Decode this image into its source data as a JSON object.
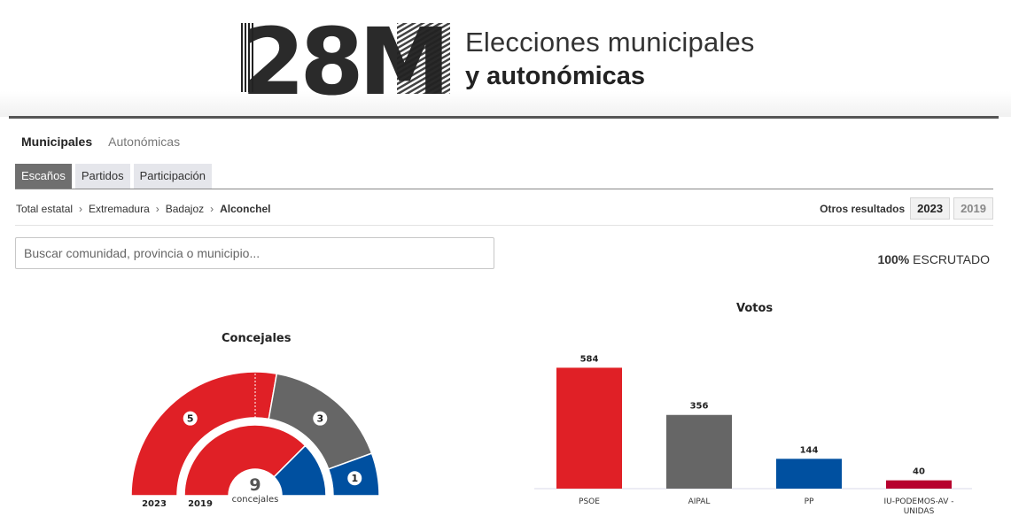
{
  "header": {
    "logo_text": "28M",
    "title_line1": "Elecciones municipales",
    "title_line2": "y autonómicas"
  },
  "election_types": [
    {
      "label": "Municipales",
      "active": true
    },
    {
      "label": "Autonómicas",
      "active": false
    }
  ],
  "tabs": [
    {
      "label": "Escaños",
      "active": true
    },
    {
      "label": "Partidos",
      "active": false
    },
    {
      "label": "Participación",
      "active": false
    }
  ],
  "breadcrumb": [
    "Total estatal",
    "Extremadura",
    "Badajoz",
    "Alconchel"
  ],
  "other_results": {
    "label": "Otros resultados",
    "years": [
      {
        "label": "2023",
        "active": true
      },
      {
        "label": "2019",
        "active": false
      }
    ]
  },
  "search": {
    "placeholder": "Buscar comunidad, provincia o municipio..."
  },
  "counted": {
    "percent": "100%",
    "label": "ESCRUTADO"
  },
  "icons": [
    "chevron-right-icon"
  ],
  "colors": {
    "PSOE": "#e02026",
    "AIPAL": "#666666",
    "PP": "#0050a0",
    "IU-PODEMOS-AV-UNIDAS": "#b7002e"
  },
  "chart_data": [
    {
      "type": "pie",
      "title": "Concejales",
      "center_value": "9",
      "center_label": "concejales",
      "ring_labels": [
        "2023",
        "2019"
      ],
      "series": [
        {
          "name": "2023",
          "slices": [
            {
              "party": "PSOE",
              "value": 5,
              "color": "#e02026"
            },
            {
              "party": "AIPAL",
              "value": 3,
              "color": "#666666"
            },
            {
              "party": "PP",
              "value": 1,
              "color": "#0050a0"
            }
          ]
        },
        {
          "name": "2019",
          "slices": [
            {
              "party": "PSOE",
              "value": 6,
              "color": "#e02026"
            },
            {
              "party": "PP",
              "value": 2,
              "color": "#0050a0"
            }
          ]
        }
      ]
    },
    {
      "type": "bar",
      "title": "Votos",
      "categories": [
        "PSOE",
        "AIPAL",
        "PP",
        "IU-PODEMOS-AV - UNIDAS"
      ],
      "values": [
        584,
        356,
        144,
        40
      ],
      "colors": [
        "#e02026",
        "#666666",
        "#0050a0",
        "#b7002e"
      ],
      "ylim": [
        0,
        620
      ]
    }
  ]
}
